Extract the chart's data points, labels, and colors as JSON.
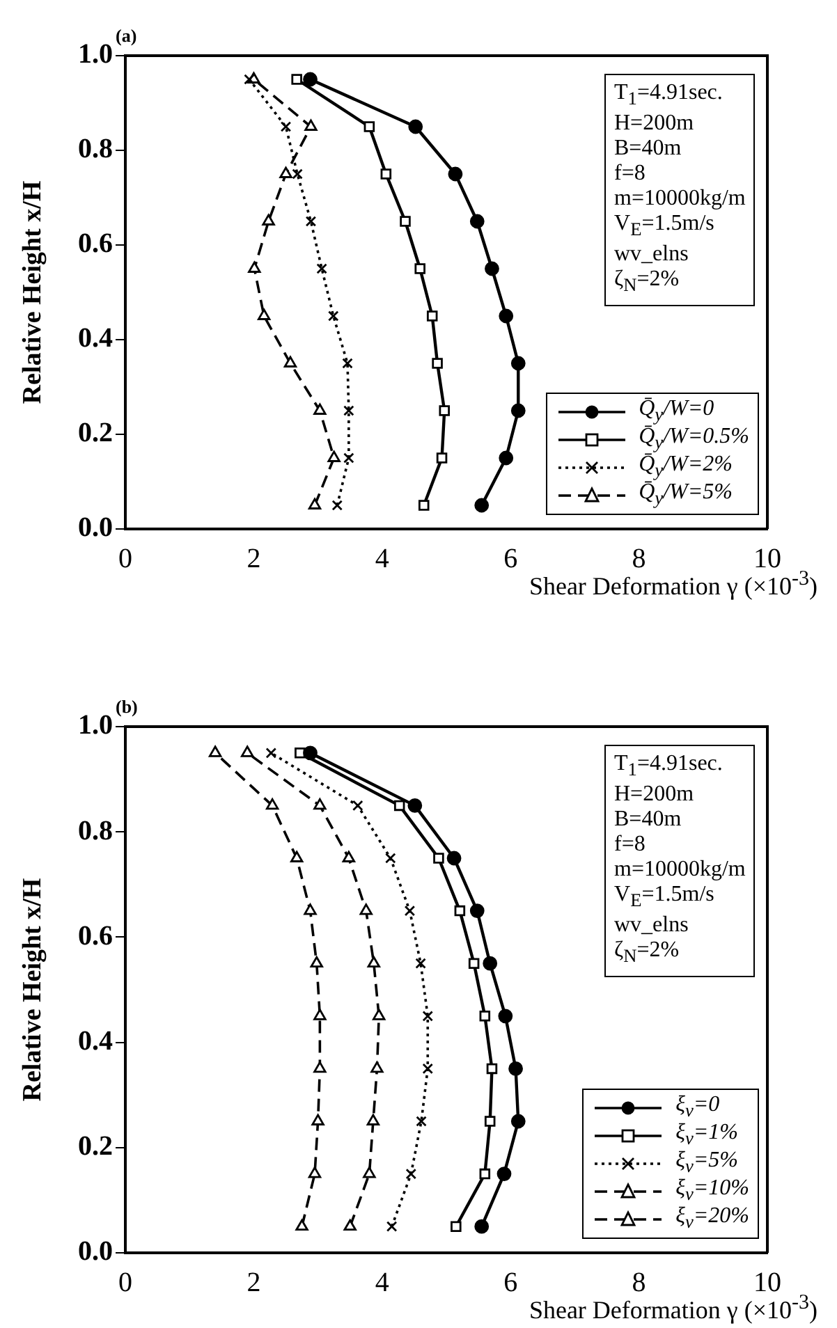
{
  "chart_data": [
    {
      "type": "line",
      "title": "(a)",
      "xlabel": "Shear Deformation  γ (×10$^{-3}$)",
      "ylabel": "Relative  Height  x/H",
      "xlim": [
        0,
        10
      ],
      "ylim": [
        0,
        1
      ],
      "xticks": [
        0,
        2,
        4,
        6,
        8,
        10
      ],
      "yticks": [
        {
          "value": 0,
          "label": "0.0"
        },
        {
          "value": 0.2,
          "label": "0.2"
        },
        {
          "value": 0.4,
          "label": "0.4"
        },
        {
          "value": 0.6,
          "label": "0.6"
        },
        {
          "value": 0.8,
          "label": "0.8"
        },
        {
          "value": 1,
          "label": "1.0"
        }
      ],
      "grid": false,
      "legend": "bottom right",
      "annotations": [
        "T$_{1}$=4.91sec.",
        "H=200m",
        "B=40m",
        "f=8",
        "m=10000kg/m",
        "V$_{E}$=1.5m/s",
        "wv_elns",
        "ζ$_{N}$=2%"
      ],
      "series": [
        {
          "name": "Q̄$_{y}$/W=0",
          "color": "#000000",
          "marker": "circle",
          "line_style": "solid",
          "x": [
            5.55,
            5.93,
            6.12,
            6.12,
            5.93,
            5.71,
            5.48,
            5.14,
            4.52,
            2.88
          ],
          "values": [
            0.05,
            0.15,
            0.25,
            0.35,
            0.45,
            0.55,
            0.65,
            0.75,
            0.85,
            0.95
          ]
        },
        {
          "name": "Q̄$_{y}$/W=0.5%",
          "color": "#000000",
          "marker": "square",
          "line_style": "solid",
          "x": [
            4.65,
            4.93,
            4.97,
            4.86,
            4.78,
            4.59,
            4.36,
            4.06,
            3.8,
            2.67
          ],
          "values": [
            0.05,
            0.15,
            0.25,
            0.35,
            0.45,
            0.55,
            0.65,
            0.75,
            0.85,
            0.95
          ]
        },
        {
          "name": "Q̄$_{y}$/W=2%",
          "color": "#000000",
          "marker": "cross",
          "line_style": "dotted",
          "x": [
            3.3,
            3.48,
            3.48,
            3.46,
            3.24,
            3.06,
            2.89,
            2.68,
            2.5,
            1.93
          ],
          "values": [
            0.05,
            0.15,
            0.25,
            0.35,
            0.45,
            0.55,
            0.65,
            0.75,
            0.85,
            0.95
          ]
        },
        {
          "name": "Q̄$_{y}$/W=5%",
          "color": "#000000",
          "marker": "triangle",
          "line_style": "dashed",
          "x": [
            2.95,
            3.25,
            3.03,
            2.57,
            2.16,
            2.01,
            2.23,
            2.5,
            2.89,
            2.0
          ],
          "values": [
            0.05,
            0.15,
            0.25,
            0.35,
            0.45,
            0.55,
            0.65,
            0.75,
            0.85,
            0.95
          ]
        }
      ]
    },
    {
      "type": "line",
      "title": "(b)",
      "xlabel": "Shear Deformation  γ (×10$^{-3}$)",
      "ylabel": "Relative  Height  x/H",
      "xlim": [
        0,
        10
      ],
      "ylim": [
        0,
        1
      ],
      "xticks": [
        0,
        2,
        4,
        6,
        8,
        10
      ],
      "yticks": [
        {
          "value": 0,
          "label": "0.0"
        },
        {
          "value": 0.2,
          "label": "0.2"
        },
        {
          "value": 0.4,
          "label": "0.4"
        },
        {
          "value": 0.6,
          "label": "0.6"
        },
        {
          "value": 0.8,
          "label": "0.8"
        },
        {
          "value": 1,
          "label": "1.0"
        }
      ],
      "grid": false,
      "legend": "bottom right",
      "annotations": [
        "T$_{1}$=4.91sec.",
        "H=200m",
        "B=40m",
        "f=8",
        "m=10000kg/m",
        "V$_{E}$=1.5m/s",
        "wv_elns",
        "ζ$_{N}$=2%"
      ],
      "series": [
        {
          "name": "ξ$_{ν}$=0",
          "color": "#000000",
          "marker": "circle",
          "line_style": "solid",
          "x": [
            5.55,
            5.9,
            6.12,
            6.08,
            5.92,
            5.68,
            5.48,
            5.12,
            4.51,
            2.88
          ],
          "values": [
            0.05,
            0.15,
            0.25,
            0.35,
            0.45,
            0.55,
            0.65,
            0.75,
            0.85,
            0.95
          ]
        },
        {
          "name": "ξ$_{ν}$=1%",
          "color": "#000000",
          "marker": "square",
          "line_style": "solid",
          "x": [
            5.15,
            5.6,
            5.68,
            5.71,
            5.6,
            5.43,
            5.21,
            4.88,
            4.27,
            2.72
          ],
          "values": [
            0.05,
            0.15,
            0.25,
            0.35,
            0.45,
            0.55,
            0.65,
            0.75,
            0.85,
            0.95
          ]
        },
        {
          "name": "ξ$_{ν}$=5%",
          "color": "#000000",
          "marker": "cross",
          "line_style": "dotted",
          "x": [
            4.15,
            4.45,
            4.61,
            4.71,
            4.71,
            4.6,
            4.43,
            4.13,
            3.62,
            2.27
          ],
          "values": [
            0.05,
            0.15,
            0.25,
            0.35,
            0.45,
            0.55,
            0.65,
            0.75,
            0.85,
            0.95
          ]
        },
        {
          "name": "ξ$_{ν}$=10%",
          "color": "#000000",
          "marker": "triangle",
          "line_style": "dashed",
          "x": [
            3.5,
            3.8,
            3.86,
            3.92,
            3.95,
            3.87,
            3.75,
            3.48,
            3.03,
            1.9
          ],
          "values": [
            0.05,
            0.15,
            0.25,
            0.35,
            0.45,
            0.55,
            0.65,
            0.75,
            0.85,
            0.95
          ]
        },
        {
          "name": "ξ$_{ν}$=20%",
          "color": "#000000",
          "marker": "triangle",
          "line_style": "dashed",
          "x": [
            2.75,
            2.95,
            3.0,
            3.03,
            3.03,
            2.98,
            2.88,
            2.67,
            2.29,
            1.4
          ],
          "values": [
            0.05,
            0.15,
            0.25,
            0.35,
            0.45,
            0.55,
            0.65,
            0.75,
            0.85,
            0.95
          ]
        }
      ]
    }
  ]
}
